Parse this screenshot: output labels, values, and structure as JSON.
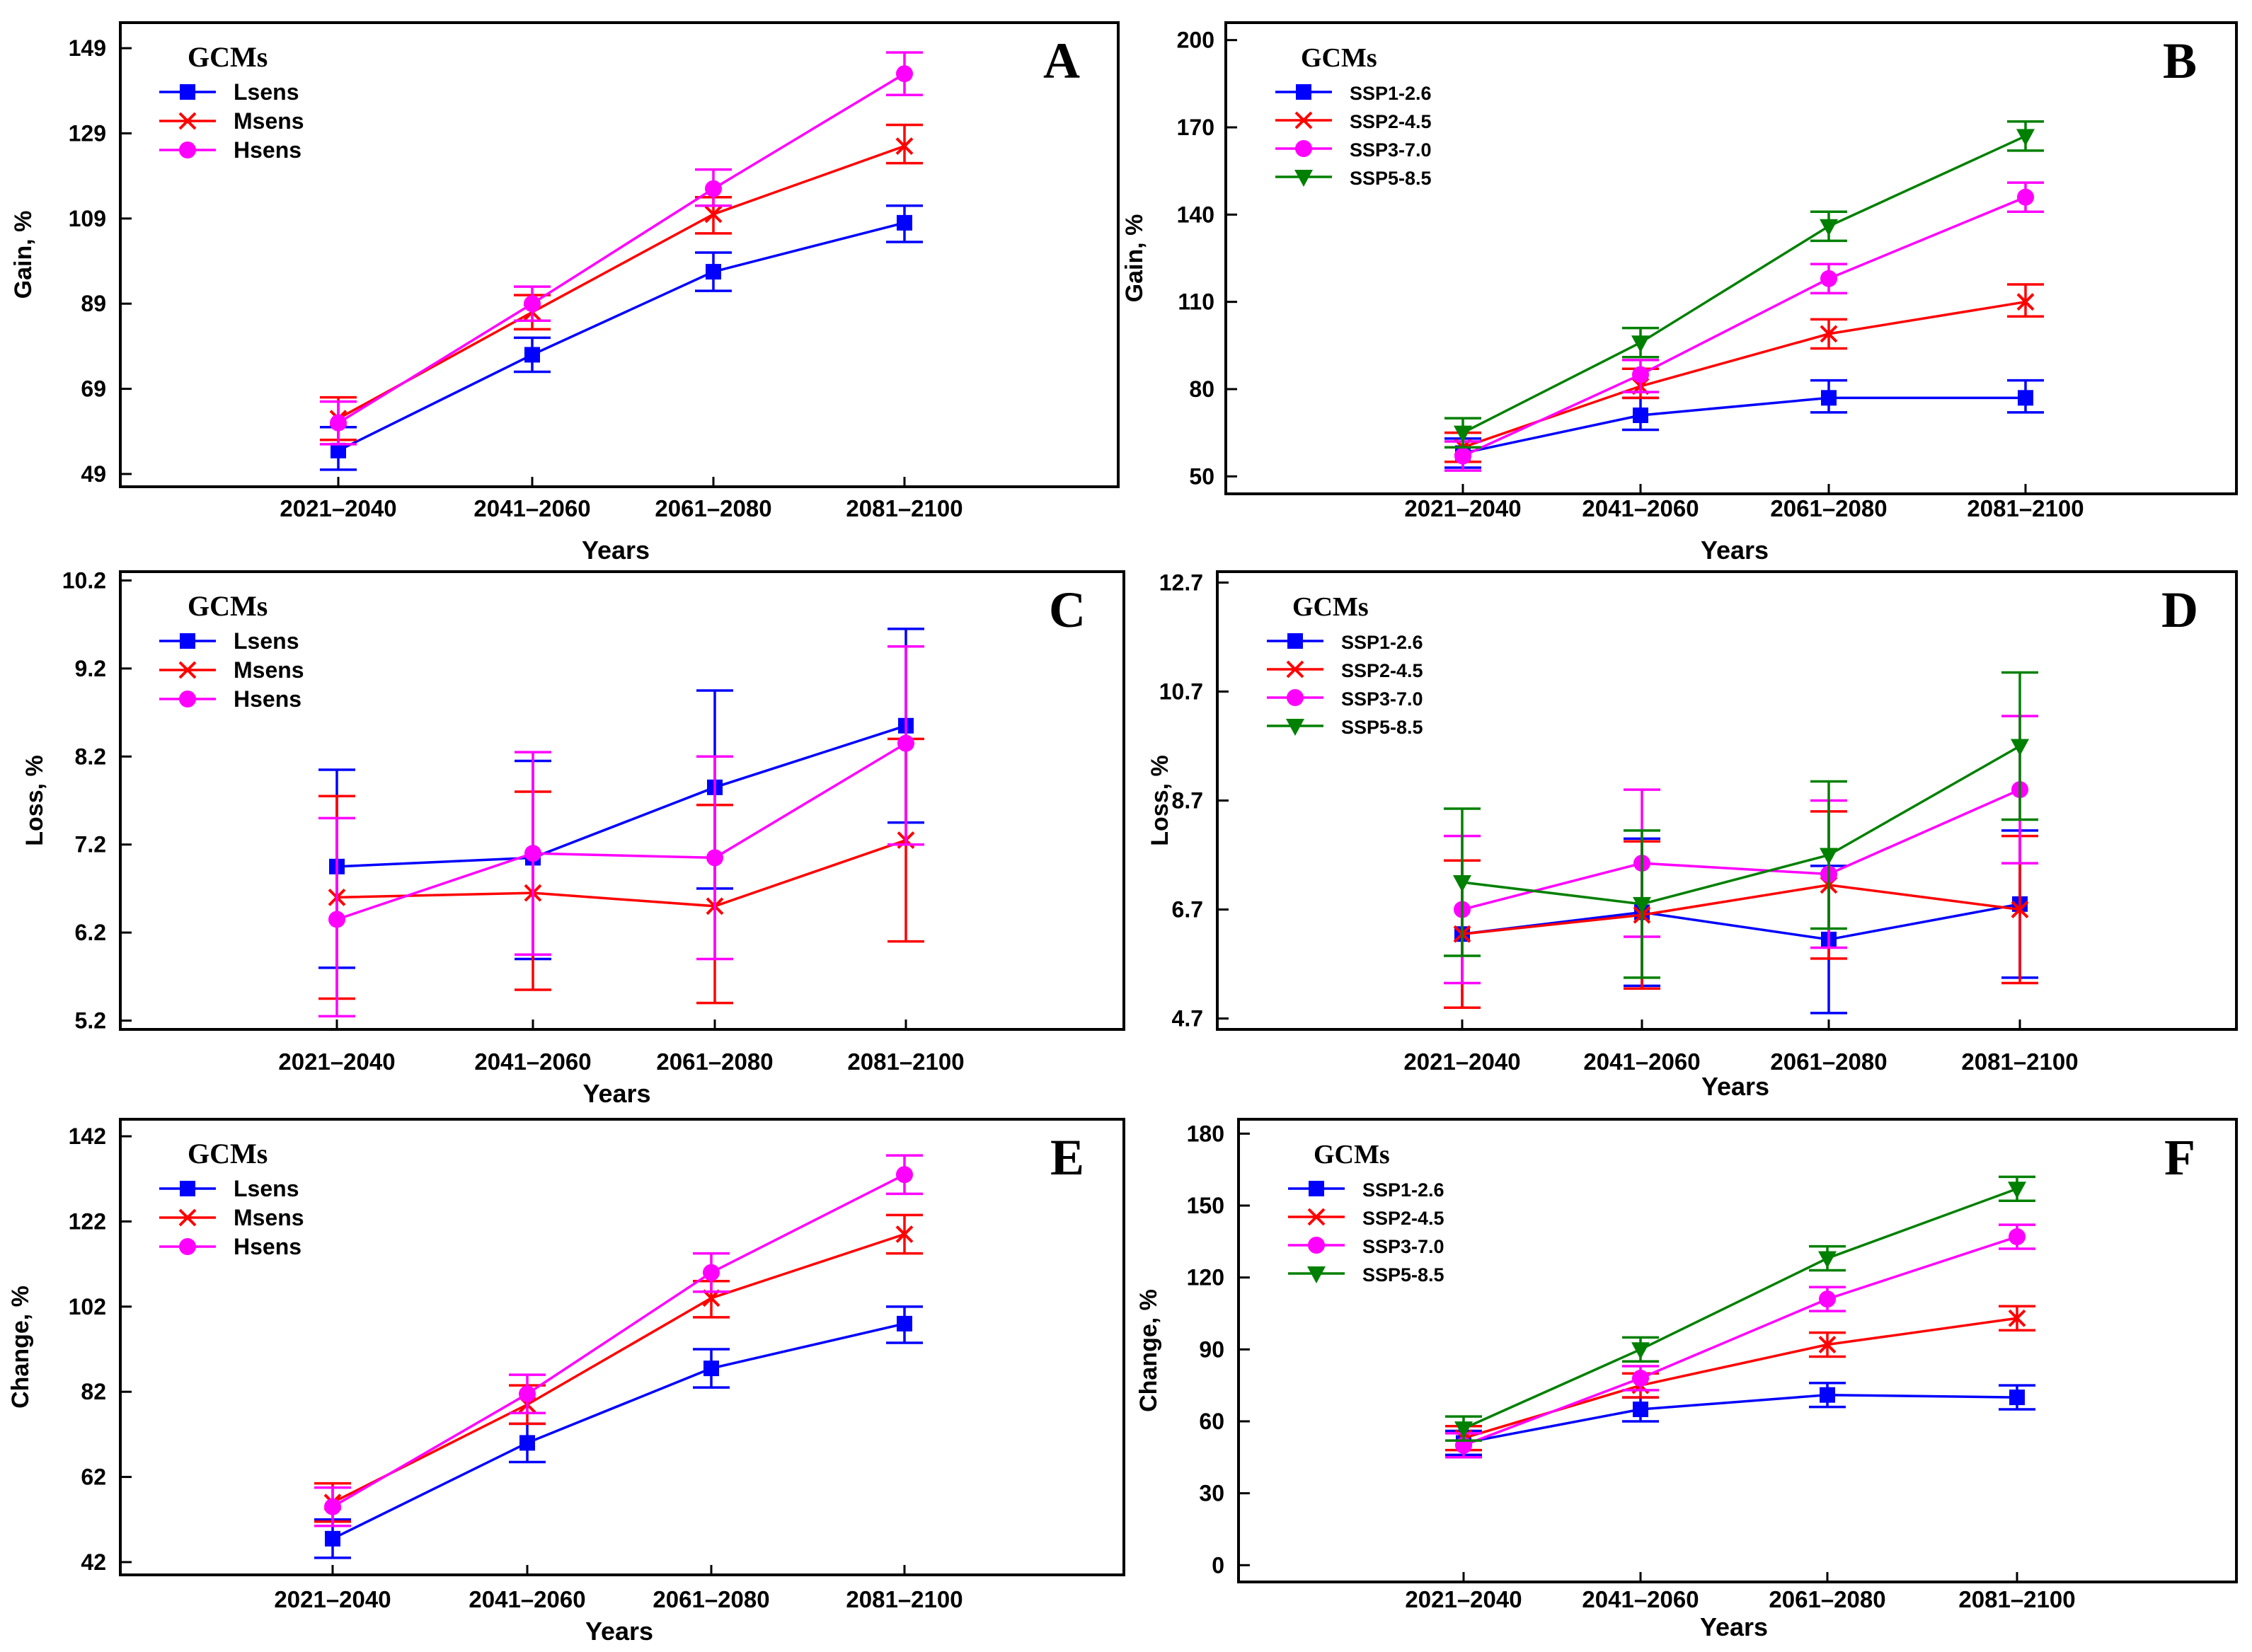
{
  "figure": {
    "description_label": "Six-panel figure of projected gain, loss and change by GCM group and SSP"
  },
  "colors": {
    "Lsens": "#0000ff",
    "Msens": "#ff0000",
    "Hsens": "#ff00ff",
    "SSP1-2.6": "#0000ff",
    "SSP2-4.5": "#ff0000",
    "SSP3-7.0": "#ff00ff",
    "SSP5-8.5": "#008000"
  },
  "chart_data": [
    {
      "id": "A",
      "type": "line",
      "panel_label": "A",
      "xlabel": "Years",
      "ylabel": "Gain, %",
      "categories": [
        "2021–2040",
        "2041–2060",
        "2061–2080",
        "2081–2100"
      ],
      "ylim": [
        46,
        155
      ],
      "yticks": [
        49,
        69,
        89,
        109,
        129,
        149
      ],
      "legend_title": "GCMs",
      "legend_position": "top-left",
      "series": [
        {
          "name": "Lsens",
          "marker": "square",
          "values": [
            54.5,
            77,
            96.5,
            108
          ],
          "err_lo": [
            50,
            73,
            92,
            103.5
          ],
          "err_hi": [
            60,
            81,
            101,
            112
          ]
        },
        {
          "name": "Msens",
          "marker": "x",
          "values": [
            62,
            87,
            110,
            126
          ],
          "err_lo": [
            57,
            83,
            105.5,
            122
          ],
          "err_hi": [
            67,
            91,
            114,
            131
          ]
        },
        {
          "name": "Hsens",
          "marker": "circle",
          "values": [
            61,
            89,
            116,
            143
          ],
          "err_lo": [
            56,
            85,
            112,
            138
          ],
          "err_hi": [
            66,
            93,
            120.5,
            148
          ]
        }
      ]
    },
    {
      "id": "B",
      "type": "line",
      "panel_label": "B",
      "xlabel": "Years",
      "ylabel": "Gain, %",
      "categories": [
        "2021–2040",
        "2041–2060",
        "2061–2080",
        "2081–2100"
      ],
      "ylim": [
        44,
        206
      ],
      "yticks": [
        50,
        80,
        110,
        140,
        170,
        200
      ],
      "legend_title": "GCMs",
      "legend_position": "top-left",
      "series": [
        {
          "name": "SSP1-2.6",
          "marker": "square",
          "values": [
            58,
            71,
            77,
            77
          ],
          "err_lo": [
            53,
            66,
            72,
            72
          ],
          "err_hi": [
            63,
            77,
            83,
            83
          ]
        },
        {
          "name": "SSP2-4.5",
          "marker": "x",
          "values": [
            60,
            81,
            99,
            110
          ],
          "err_lo": [
            55,
            77,
            94,
            105
          ],
          "err_hi": [
            65,
            87,
            104,
            116
          ]
        },
        {
          "name": "SSP3-7.0",
          "marker": "circle",
          "values": [
            57,
            85,
            118,
            146
          ],
          "err_lo": [
            52,
            79,
            113,
            141
          ],
          "err_hi": [
            62,
            90,
            123,
            151
          ]
        },
        {
          "name": "SSP5-8.5",
          "marker": "triangle",
          "values": [
            65,
            96,
            136,
            167
          ],
          "err_lo": [
            60,
            91,
            131,
            162
          ],
          "err_hi": [
            70,
            101,
            141,
            172
          ]
        }
      ]
    },
    {
      "id": "C",
      "type": "line",
      "panel_label": "C",
      "xlabel": "Years",
      "ylabel": "Loss, %",
      "categories": [
        "2021–2040",
        "2041–2060",
        "2061–2080",
        "2081–2100"
      ],
      "ylim": [
        5.1,
        10.3
      ],
      "yticks": [
        5.2,
        6.2,
        7.2,
        8.2,
        9.2,
        10.2
      ],
      "legend_title": "GCMs",
      "legend_position": "top-left",
      "series": [
        {
          "name": "Lsens",
          "marker": "square",
          "values": [
            6.95,
            7.05,
            7.85,
            8.55
          ],
          "err_lo": [
            5.8,
            5.9,
            6.7,
            7.45
          ],
          "err_hi": [
            8.05,
            8.15,
            8.95,
            9.65
          ]
        },
        {
          "name": "Msens",
          "marker": "x",
          "values": [
            6.6,
            6.65,
            6.5,
            7.25
          ],
          "err_lo": [
            5.45,
            5.55,
            5.4,
            6.1
          ],
          "err_hi": [
            7.75,
            7.8,
            7.65,
            8.4
          ]
        },
        {
          "name": "Hsens",
          "marker": "circle",
          "values": [
            6.35,
            7.1,
            7.05,
            8.35
          ],
          "err_lo": [
            5.25,
            5.95,
            5.9,
            7.2
          ],
          "err_hi": [
            7.5,
            8.25,
            8.2,
            9.45
          ]
        }
      ]
    },
    {
      "id": "D",
      "type": "line",
      "panel_label": "D",
      "xlabel": "Years",
      "ylabel": "Loss, %",
      "categories": [
        "2021–2040",
        "2041–2060",
        "2061–2080",
        "2081–2100"
      ],
      "ylim": [
        4.5,
        12.9
      ],
      "yticks": [
        4.7,
        6.7,
        8.7,
        10.7,
        12.7
      ],
      "legend_title": "GCMs",
      "legend_position": "top-left",
      "series": [
        {
          "name": "SSP1-2.6",
          "marker": "square",
          "values": [
            6.25,
            6.65,
            6.15,
            6.8
          ],
          "err_lo": [
            4.9,
            5.3,
            4.8,
            5.45
          ],
          "err_hi": [
            7.6,
            8.0,
            7.5,
            8.15
          ]
        },
        {
          "name": "SSP2-4.5",
          "marker": "x",
          "values": [
            6.25,
            6.6,
            7.15,
            6.7
          ],
          "err_lo": [
            4.9,
            5.25,
            5.8,
            5.35
          ],
          "err_hi": [
            7.6,
            7.95,
            8.5,
            8.05
          ]
        },
        {
          "name": "SSP3-7.0",
          "marker": "circle",
          "values": [
            6.7,
            7.55,
            7.35,
            8.9
          ],
          "err_lo": [
            5.35,
            6.2,
            6.0,
            7.55
          ],
          "err_hi": [
            8.05,
            8.9,
            8.7,
            10.25
          ]
        },
        {
          "name": "SSP5-8.5",
          "marker": "triangle",
          "values": [
            7.2,
            6.8,
            7.7,
            9.7
          ],
          "err_lo": [
            5.85,
            5.45,
            6.35,
            8.35
          ],
          "err_hi": [
            8.55,
            8.15,
            9.05,
            11.05
          ]
        }
      ]
    },
    {
      "id": "E",
      "type": "line",
      "panel_label": "E",
      "xlabel": "Years",
      "ylabel": "Change, %",
      "categories": [
        "2021–2040",
        "2041–2060",
        "2061–2080",
        "2081–2100"
      ],
      "ylim": [
        39,
        146
      ],
      "yticks": [
        42,
        62,
        82,
        102,
        122,
        142
      ],
      "legend_title": "GCMs",
      "legend_position": "top-left",
      "series": [
        {
          "name": "Lsens",
          "marker": "square",
          "values": [
            47.5,
            70,
            87.5,
            98
          ],
          "err_lo": [
            43,
            65.5,
            83,
            93.5
          ],
          "err_hi": [
            52,
            74.5,
            92,
            102
          ]
        },
        {
          "name": "Msens",
          "marker": "x",
          "values": [
            56,
            79,
            104,
            119
          ],
          "err_lo": [
            51.5,
            74.5,
            99.5,
            114.5
          ],
          "err_hi": [
            60.5,
            83.5,
            108,
            123.5
          ]
        },
        {
          "name": "Hsens",
          "marker": "circle",
          "values": [
            55,
            81.5,
            110,
            133
          ],
          "err_lo": [
            50.5,
            77,
            105.5,
            128.5
          ],
          "err_hi": [
            59.5,
            86,
            114.5,
            137.5
          ]
        }
      ]
    },
    {
      "id": "F",
      "type": "line",
      "panel_label": "F",
      "xlabel": "Years",
      "ylabel": "Change, %",
      "categories": [
        "2021–2040",
        "2041–2060",
        "2061–2080",
        "2081–2100"
      ],
      "ylim": [
        -7,
        186
      ],
      "yticks": [
        0,
        30,
        60,
        90,
        120,
        150,
        180
      ],
      "legend_title": "GCMs",
      "legend_position": "top-left",
      "series": [
        {
          "name": "SSP1-2.6",
          "marker": "square",
          "values": [
            51,
            65,
            71,
            70
          ],
          "err_lo": [
            46,
            60,
            66,
            65
          ],
          "err_hi": [
            56,
            70,
            76,
            75
          ]
        },
        {
          "name": "SSP2-4.5",
          "marker": "x",
          "values": [
            53,
            75,
            92,
            103
          ],
          "err_lo": [
            48,
            70,
            87,
            98
          ],
          "err_hi": [
            58,
            80,
            97,
            108
          ]
        },
        {
          "name": "SSP3-7.0",
          "marker": "circle",
          "values": [
            50,
            78,
            111,
            137
          ],
          "err_lo": [
            45,
            73,
            106,
            132
          ],
          "err_hi": [
            55,
            83,
            116,
            142
          ]
        },
        {
          "name": "SSP5-8.5",
          "marker": "triangle",
          "values": [
            57,
            90,
            128,
            157
          ],
          "err_lo": [
            52,
            85,
            123,
            152
          ],
          "err_hi": [
            62,
            95,
            133,
            162
          ]
        }
      ]
    }
  ]
}
